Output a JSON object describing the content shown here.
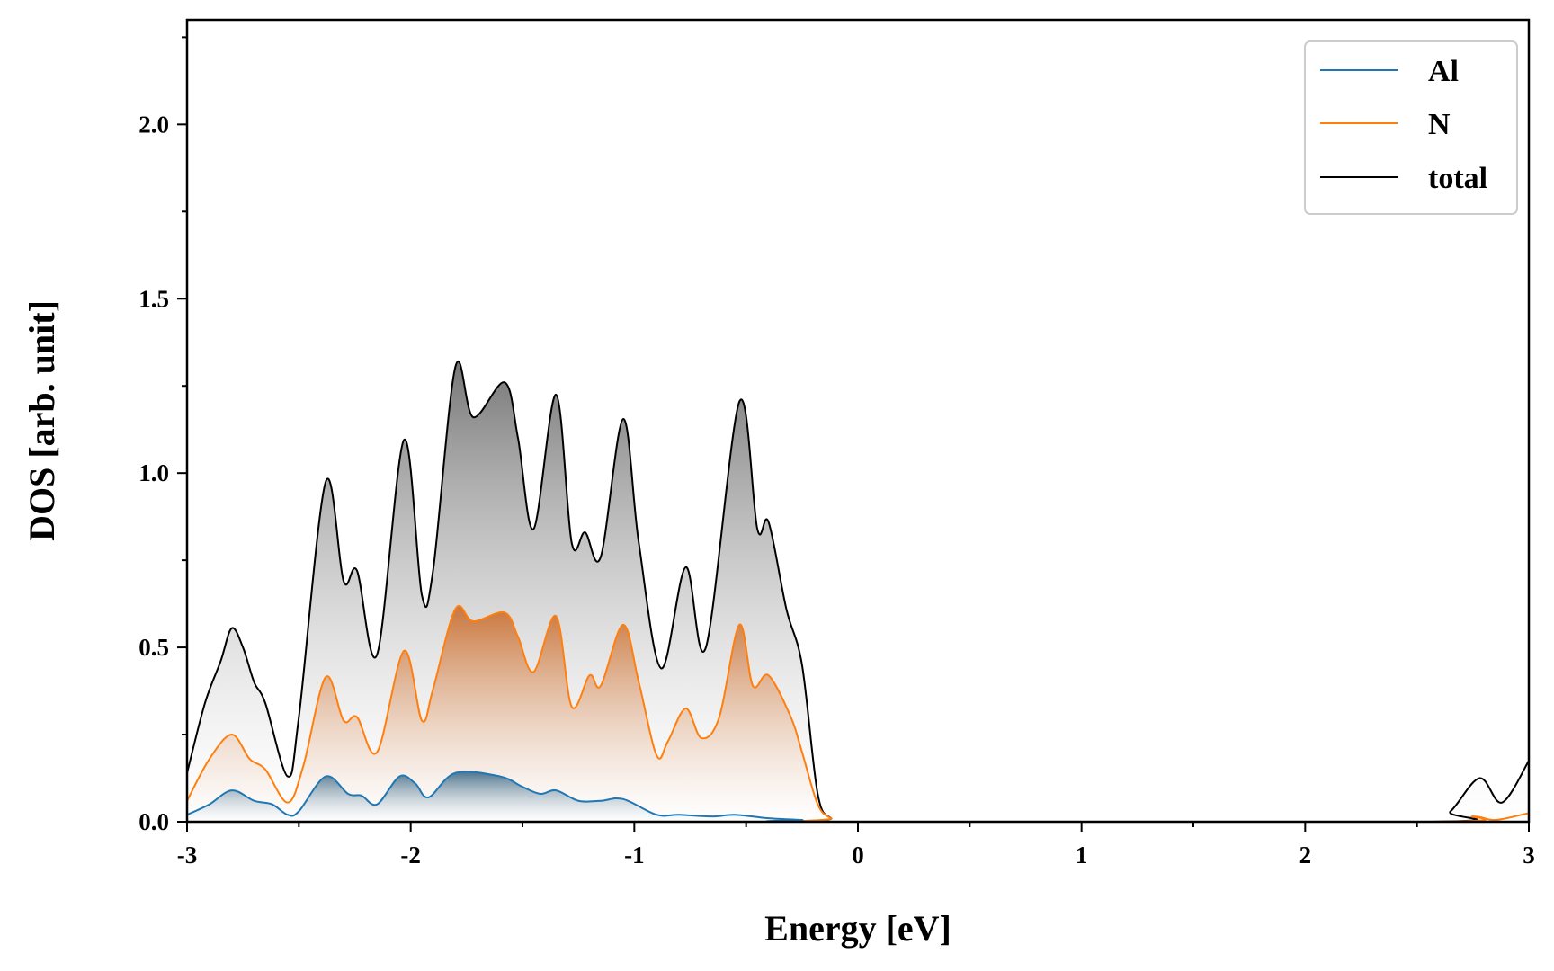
{
  "chart_data": {
    "type": "area",
    "title": "",
    "xlabel": "Energy [eV]",
    "ylabel": "DOS [arb. unit]",
    "xlim": [
      -3,
      3
    ],
    "ylim": [
      0,
      2.3
    ],
    "x_ticks": [
      -3,
      -2,
      -1,
      0,
      1,
      2,
      3
    ],
    "x_tick_labels": [
      "-3",
      "-2",
      "-1",
      "0",
      "1",
      "2",
      "3"
    ],
    "x_minor_step": 0.5,
    "y_ticks": [
      0.0,
      0.5,
      1.0,
      1.5,
      2.0
    ],
    "y_tick_labels": [
      "0.0",
      "0.5",
      "1.0",
      "1.5",
      "2.0"
    ],
    "y_minor_step": 0.25,
    "grid": false,
    "legend_position": "top-right",
    "series": [
      {
        "name": "Al",
        "color": "#1f77b4",
        "filled": true,
        "points": [
          [
            -3.0,
            0.02
          ],
          [
            -2.9,
            0.05
          ],
          [
            -2.8,
            0.09
          ],
          [
            -2.7,
            0.06
          ],
          [
            -2.62,
            0.05
          ],
          [
            -2.55,
            0.02
          ],
          [
            -2.5,
            0.03
          ],
          [
            -2.38,
            0.13
          ],
          [
            -2.28,
            0.08
          ],
          [
            -2.22,
            0.075
          ],
          [
            -2.15,
            0.05
          ],
          [
            -2.05,
            0.13
          ],
          [
            -1.98,
            0.11
          ],
          [
            -1.92,
            0.07
          ],
          [
            -1.8,
            0.14
          ],
          [
            -1.6,
            0.13
          ],
          [
            -1.5,
            0.1
          ],
          [
            -1.42,
            0.08
          ],
          [
            -1.35,
            0.09
          ],
          [
            -1.25,
            0.06
          ],
          [
            -1.15,
            0.06
          ],
          [
            -1.05,
            0.065
          ],
          [
            -0.9,
            0.02
          ],
          [
            -0.8,
            0.02
          ],
          [
            -0.65,
            0.015
          ],
          [
            -0.55,
            0.02
          ],
          [
            -0.4,
            0.01
          ],
          [
            -0.25,
            0.005
          ],
          [
            -0.15,
            0.0
          ],
          [
            3.0,
            0.0
          ]
        ]
      },
      {
        "name": "N",
        "color": "#ff7f0e",
        "filled": true,
        "points": [
          [
            -3.0,
            0.06
          ],
          [
            -2.9,
            0.18
          ],
          [
            -2.8,
            0.25
          ],
          [
            -2.72,
            0.18
          ],
          [
            -2.65,
            0.15
          ],
          [
            -2.55,
            0.055
          ],
          [
            -2.48,
            0.16
          ],
          [
            -2.38,
            0.415
          ],
          [
            -2.3,
            0.29
          ],
          [
            -2.24,
            0.3
          ],
          [
            -2.15,
            0.2
          ],
          [
            -2.03,
            0.49
          ],
          [
            -1.95,
            0.29
          ],
          [
            -1.9,
            0.38
          ],
          [
            -1.8,
            0.61
          ],
          [
            -1.72,
            0.575
          ],
          [
            -1.58,
            0.6
          ],
          [
            -1.52,
            0.53
          ],
          [
            -1.45,
            0.43
          ],
          [
            -1.35,
            0.59
          ],
          [
            -1.28,
            0.33
          ],
          [
            -1.2,
            0.42
          ],
          [
            -1.15,
            0.39
          ],
          [
            -1.05,
            0.565
          ],
          [
            -0.98,
            0.4
          ],
          [
            -0.9,
            0.19
          ],
          [
            -0.85,
            0.23
          ],
          [
            -0.77,
            0.325
          ],
          [
            -0.7,
            0.24
          ],
          [
            -0.62,
            0.3
          ],
          [
            -0.53,
            0.565
          ],
          [
            -0.47,
            0.39
          ],
          [
            -0.4,
            0.42
          ],
          [
            -0.3,
            0.3
          ],
          [
            -0.25,
            0.2
          ],
          [
            -0.18,
            0.05
          ],
          [
            -0.12,
            0.01
          ],
          [
            -0.05,
            0.0
          ],
          [
            2.55,
            0.0
          ],
          [
            2.75,
            0.015
          ],
          [
            2.85,
            0.005
          ],
          [
            3.0,
            0.025
          ]
        ]
      },
      {
        "name": "total",
        "color": "#000000",
        "filled": true,
        "points": [
          [
            -3.0,
            0.14
          ],
          [
            -2.92,
            0.34
          ],
          [
            -2.85,
            0.46
          ],
          [
            -2.8,
            0.555
          ],
          [
            -2.75,
            0.5
          ],
          [
            -2.7,
            0.4
          ],
          [
            -2.65,
            0.34
          ],
          [
            -2.55,
            0.13
          ],
          [
            -2.5,
            0.3
          ],
          [
            -2.38,
            0.975
          ],
          [
            -2.3,
            0.69
          ],
          [
            -2.24,
            0.72
          ],
          [
            -2.15,
            0.48
          ],
          [
            -2.03,
            1.095
          ],
          [
            -1.95,
            0.65
          ],
          [
            -1.9,
            0.72
          ],
          [
            -1.8,
            1.305
          ],
          [
            -1.72,
            1.16
          ],
          [
            -1.58,
            1.26
          ],
          [
            -1.52,
            1.1
          ],
          [
            -1.45,
            0.84
          ],
          [
            -1.35,
            1.225
          ],
          [
            -1.28,
            0.8
          ],
          [
            -1.22,
            0.83
          ],
          [
            -1.15,
            0.76
          ],
          [
            -1.05,
            1.155
          ],
          [
            -0.98,
            0.8
          ],
          [
            -0.88,
            0.44
          ],
          [
            -0.77,
            0.73
          ],
          [
            -0.68,
            0.5
          ],
          [
            -0.53,
            1.205
          ],
          [
            -0.45,
            0.84
          ],
          [
            -0.4,
            0.86
          ],
          [
            -0.32,
            0.61
          ],
          [
            -0.25,
            0.45
          ],
          [
            -0.18,
            0.08
          ],
          [
            -0.12,
            0.01
          ],
          [
            -0.05,
            0.0
          ],
          [
            2.55,
            0.0
          ],
          [
            2.65,
            0.03
          ],
          [
            2.78,
            0.125
          ],
          [
            2.88,
            0.055
          ],
          [
            3.0,
            0.175
          ]
        ]
      }
    ]
  }
}
